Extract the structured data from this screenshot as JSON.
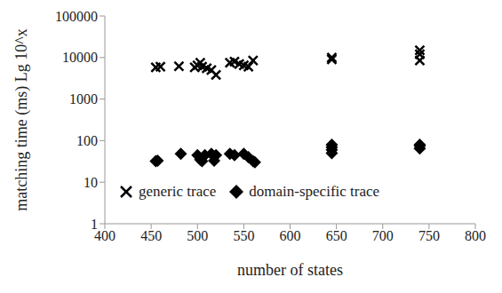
{
  "chart_data": {
    "type": "scatter",
    "x_label": "number of states",
    "y_label": "matching time (ms) Lg 10^x",
    "xlim": [
      400,
      800
    ],
    "xticks": [
      400,
      450,
      500,
      550,
      600,
      650,
      700,
      750,
      800
    ],
    "ylim": [
      1,
      100000
    ],
    "yticks": [
      1,
      10,
      100,
      1000,
      10000,
      100000
    ],
    "log": "y",
    "grid": false,
    "legend": "bottom",
    "series": [
      {
        "name": "generic trace",
        "color": "#000000",
        "marker": "x",
        "x": [
          455,
          460,
          480,
          497,
          500,
          503,
          505,
          510,
          515,
          520,
          535,
          540,
          545,
          550,
          555,
          560,
          645,
          645,
          740,
          740,
          740
        ],
        "values": [
          5800,
          6000,
          6200,
          5800,
          6500,
          7500,
          6000,
          5500,
          5000,
          3800,
          7500,
          8000,
          7000,
          6500,
          6000,
          8500,
          9000,
          10000,
          8500,
          12000,
          15000
        ]
      },
      {
        "name": "domain-specific trace",
        "color": "#000000",
        "marker": "diamond",
        "x": [
          455,
          457,
          482,
          500,
          503,
          505,
          508,
          515,
          518,
          520,
          535,
          540,
          550,
          555,
          560,
          562,
          645,
          645,
          645,
          645,
          740,
          740,
          740
        ],
        "values": [
          32,
          33,
          48,
          45,
          35,
          32,
          45,
          48,
          33,
          45,
          48,
          45,
          48,
          40,
          32,
          30,
          50,
          60,
          70,
          80,
          65,
          75,
          80
        ]
      }
    ]
  }
}
